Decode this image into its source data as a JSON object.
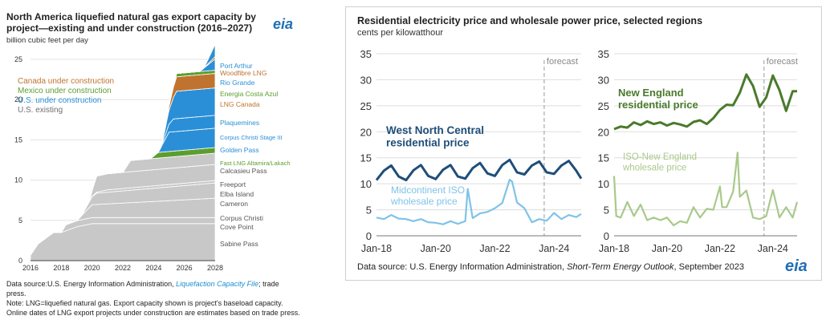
{
  "left_panel": {
    "title_line1": "North America liquefied natural gas export capacity by",
    "title_line2": "project—existing and under construction (2016–2027)",
    "units": "billion cubic feet per day",
    "logo": "eia",
    "legend": [
      {
        "label": "Canada under construction",
        "color": "#c0732f"
      },
      {
        "label": "Mexico under construction",
        "color": "#5c9e2e"
      },
      {
        "label": "U.S. under construction",
        "color": "#2a8fd6"
      },
      {
        "label": "U.S. existing",
        "color": "#6e6e6e"
      }
    ],
    "source_line1_prefix": "Data source:U.S. Energy Information Administration, ",
    "source_link": "Liquefaction Capacity File",
    "source_line1_suffix": "; trade",
    "source_line2": "press.",
    "note_line1": "Note: LNG=liquefied natural gas. Export capacity shown is project's baseload capacity.",
    "note_line2": "Online dates of LNG export projects under construction are estimates based on trade press."
  },
  "right_panel": {
    "title": "Residential electricity price and wholesale power price, selected regions",
    "units": "cents per kilowatthour",
    "source_prefix": "Data source: U.S. Energy Information Administration, ",
    "source_italic": "Short-Term Energy Outlook",
    "source_suffix": ", September 2023",
    "logo": "eia"
  },
  "chart_data": [
    {
      "type": "area",
      "title": "North America liquefied natural gas export capacity by project—existing and under construction (2016–2027)",
      "ylabel": "billion cubic feet per day",
      "xlim": [
        2016,
        2028
      ],
      "ylim": [
        0,
        25
      ],
      "xticks": [
        "2016",
        "2018",
        "2020",
        "2022",
        "2024",
        "2026",
        "2028"
      ],
      "yticks": [
        "0",
        "5",
        "10",
        "15",
        "20",
        "25"
      ],
      "series_order": "bottom to top",
      "series": [
        {
          "name": "Sabine Pass",
          "group": "U.S. existing",
          "x": [
            2016,
            2016.5,
            2017,
            2017.5,
            2018,
            2019,
            2020,
            2028
          ],
          "values": [
            0.7,
            2.1,
            2.8,
            3.5,
            3.5,
            4.2,
            4.6,
            4.6
          ]
        },
        {
          "name": "Cove Point",
          "group": "U.S. existing",
          "x": [
            2016,
            2018,
            2018.3,
            2028
          ],
          "values": [
            0,
            0,
            0.75,
            0.75
          ]
        },
        {
          "name": "Corpus Christi",
          "group": "U.S. existing",
          "x": [
            2016,
            2019,
            2019.5,
            2020,
            2028
          ],
          "values": [
            0,
            0,
            0.8,
            1.6,
            2.4
          ]
        },
        {
          "name": "Cameron",
          "group": "U.S. existing",
          "x": [
            2016,
            2019.3,
            2019.8,
            2020.3,
            2028
          ],
          "values": [
            0,
            0,
            0.7,
            1.4,
            1.9
          ]
        },
        {
          "name": "Elba Island",
          "group": "U.S. existing",
          "x": [
            2016,
            2019.8,
            2021,
            2028
          ],
          "values": [
            0,
            0,
            0.3,
            0.3
          ]
        },
        {
          "name": "Freeport",
          "group": "U.S. existing",
          "x": [
            2016,
            2019.8,
            2020,
            2020.3,
            2028
          ],
          "values": [
            0,
            0,
            0.7,
            2.0,
            2.0
          ]
        },
        {
          "name": "Calcasieu Pass",
          "group": "U.S. existing",
          "x": [
            2016,
            2022,
            2022.5,
            2028
          ],
          "values": [
            0,
            0,
            1.4,
            1.4
          ]
        },
        {
          "name": "Fast LNG Altamira/Lakach",
          "group": "Mexico under construction",
          "x": [
            2016,
            2023.8,
            2024.3,
            2028
          ],
          "values": [
            0,
            0,
            0.7,
            0.7
          ]
        },
        {
          "name": "Golden Pass",
          "group": "U.S. under construction",
          "x": [
            2016,
            2024.3,
            2025,
            2028
          ],
          "values": [
            0,
            0,
            2.4,
            2.4
          ]
        },
        {
          "name": "Corpus Christi Stage III",
          "group": "U.S. under construction",
          "x": [
            2016,
            2024.5,
            2025.3,
            2028
          ],
          "values": [
            0,
            0,
            1.6,
            1.6
          ]
        },
        {
          "name": "Plaquemines",
          "group": "U.S. under construction",
          "x": [
            2016,
            2024.5,
            2025.5,
            2028
          ],
          "values": [
            0,
            0,
            3.4,
            3.4
          ]
        },
        {
          "name": "LNG Canada",
          "group": "Canada under construction",
          "x": [
            2016,
            2024.8,
            2025.5,
            2028
          ],
          "values": [
            0,
            0,
            1.8,
            1.8
          ]
        },
        {
          "name": "Energia Costa Azul",
          "group": "Mexico under construction",
          "x": [
            2016,
            2025,
            2025.5,
            2028
          ],
          "values": [
            0,
            0,
            0.4,
            0.4
          ]
        },
        {
          "name": "Rio Grande",
          "group": "U.S. under construction",
          "x": [
            2016,
            2027,
            2028
          ],
          "values": [
            0,
            0,
            1.4
          ]
        },
        {
          "name": "Woodfibre LNG",
          "group": "Canada under construction",
          "x": [
            2016,
            2027.2,
            2028
          ],
          "values": [
            0,
            0,
            0.3
          ]
        },
        {
          "name": "Port Arthur",
          "group": "U.S. under construction",
          "x": [
            2016,
            2027.3,
            2028
          ],
          "values": [
            0,
            0,
            1.5
          ]
        }
      ]
    },
    {
      "type": "line",
      "xticks": [
        "Jan-18",
        "Jan-20",
        "Jan-22",
        "Jan-24"
      ],
      "xlim": [
        "Jan-18",
        "Dec-24"
      ],
      "ylim": [
        0,
        35
      ],
      "yticks": [
        "0",
        "5",
        "10",
        "15",
        "20",
        "25",
        "30",
        "35"
      ],
      "annotation": "forecast",
      "forecast_start": "Sep-23",
      "series": [
        {
          "name": "West North Central residential price",
          "color": "#1f4e79",
          "x": [
            "Jan-18",
            "Apr-18",
            "Jul-18",
            "Oct-18",
            "Jan-19",
            "Apr-19",
            "Jul-19",
            "Oct-19",
            "Jan-20",
            "Apr-20",
            "Jul-20",
            "Oct-20",
            "Jan-21",
            "Apr-21",
            "Jul-21",
            "Oct-21",
            "Jan-22",
            "Apr-22",
            "Jul-22",
            "Oct-22",
            "Jan-23",
            "Apr-23",
            "Jul-23",
            "Oct-23",
            "Jan-24",
            "Apr-24",
            "Jul-24",
            "Oct-24",
            "Dec-24"
          ],
          "values": [
            10.7,
            12.5,
            13.5,
            11.4,
            10.7,
            12.6,
            13.6,
            11.5,
            10.9,
            12.7,
            13.6,
            11.4,
            11.0,
            13.0,
            14.0,
            12.0,
            11.5,
            13.6,
            14.6,
            12.2,
            11.8,
            13.5,
            14.3,
            12.2,
            11.9,
            13.5,
            14.4,
            12.5,
            11.0
          ]
        },
        {
          "name": "Midcontinent ISO wholesale price",
          "color": "#7fc3e8",
          "x": [
            "Jan-18",
            "Apr-18",
            "Jul-18",
            "Oct-18",
            "Jan-19",
            "Apr-19",
            "Jul-19",
            "Oct-19",
            "Jan-20",
            "Apr-20",
            "Jul-20",
            "Oct-20",
            "Jan-21",
            "Feb-21",
            "Apr-21",
            "Jul-21",
            "Oct-21",
            "Jan-22",
            "Apr-22",
            "Jul-22",
            "Aug-22",
            "Oct-22",
            "Jan-23",
            "Apr-23",
            "Jul-23",
            "Oct-23",
            "Jan-24",
            "Apr-24",
            "Jul-24",
            "Oct-24",
            "Dec-24"
          ],
          "values": [
            3.5,
            3.2,
            4.0,
            3.3,
            3.2,
            2.8,
            3.2,
            2.6,
            2.5,
            2.2,
            2.8,
            2.3,
            2.8,
            9.0,
            3.4,
            4.3,
            4.6,
            5.3,
            6.3,
            10.8,
            10.4,
            6.4,
            5.3,
            2.6,
            3.2,
            2.9,
            4.4,
            3.2,
            4.0,
            3.6,
            4.2
          ]
        }
      ]
    },
    {
      "type": "line",
      "xticks": [
        "Jan-18",
        "Jan-20",
        "Jan-22",
        "Jan-24"
      ],
      "xlim": [
        "Jan-18",
        "Dec-24"
      ],
      "ylim": [
        0,
        35
      ],
      "yticks": [
        "0",
        "5",
        "10",
        "15",
        "20",
        "25",
        "30",
        "35"
      ],
      "annotation": "forecast",
      "forecast_start": "Sep-23",
      "series": [
        {
          "name": "New England residential price",
          "color": "#4a7a2b",
          "x": [
            "Jan-18",
            "Apr-18",
            "Jul-18",
            "Oct-18",
            "Jan-19",
            "Apr-19",
            "Jul-19",
            "Oct-19",
            "Jan-20",
            "Apr-20",
            "Jul-20",
            "Oct-20",
            "Jan-21",
            "Apr-21",
            "Jul-21",
            "Oct-21",
            "Jan-22",
            "Apr-22",
            "Jul-22",
            "Oct-22",
            "Jan-23",
            "Apr-23",
            "Jul-23",
            "Oct-23",
            "Jan-24",
            "Apr-24",
            "Jul-24",
            "Oct-24",
            "Dec-24"
          ],
          "values": [
            20.5,
            21.0,
            20.8,
            21.8,
            21.3,
            22.0,
            21.5,
            21.8,
            21.2,
            21.7,
            21.4,
            21.0,
            21.9,
            22.2,
            21.5,
            22.6,
            24.2,
            25.2,
            25.1,
            27.5,
            31.0,
            28.8,
            24.8,
            26.6,
            30.8,
            28.0,
            24.0,
            27.8,
            27.8
          ]
        },
        {
          "name": "ISO-New England wholesale price",
          "color": "#a9c98b",
          "x": [
            "Jan-18",
            "Feb-18",
            "Apr-18",
            "Jul-18",
            "Oct-18",
            "Jan-19",
            "Apr-19",
            "Jul-19",
            "Oct-19",
            "Jan-20",
            "Apr-20",
            "Jul-20",
            "Oct-20",
            "Jan-21",
            "Apr-21",
            "Jul-21",
            "Oct-21",
            "Jan-22",
            "Feb-22",
            "Apr-22",
            "Jul-22",
            "Sep-22",
            "Oct-22",
            "Jan-23",
            "Apr-23",
            "Jul-23",
            "Oct-23",
            "Jan-24",
            "Apr-24",
            "Jul-24",
            "Oct-24",
            "Dec-24"
          ],
          "values": [
            11.5,
            3.8,
            3.5,
            6.5,
            3.8,
            6.0,
            3.0,
            3.5,
            3.0,
            3.5,
            2.0,
            2.8,
            2.5,
            5.5,
            3.5,
            5.2,
            5.0,
            9.5,
            5.5,
            5.5,
            8.5,
            16.0,
            7.5,
            8.7,
            3.5,
            3.2,
            3.8,
            8.8,
            3.5,
            5.5,
            3.5,
            6.5
          ]
        }
      ]
    }
  ]
}
